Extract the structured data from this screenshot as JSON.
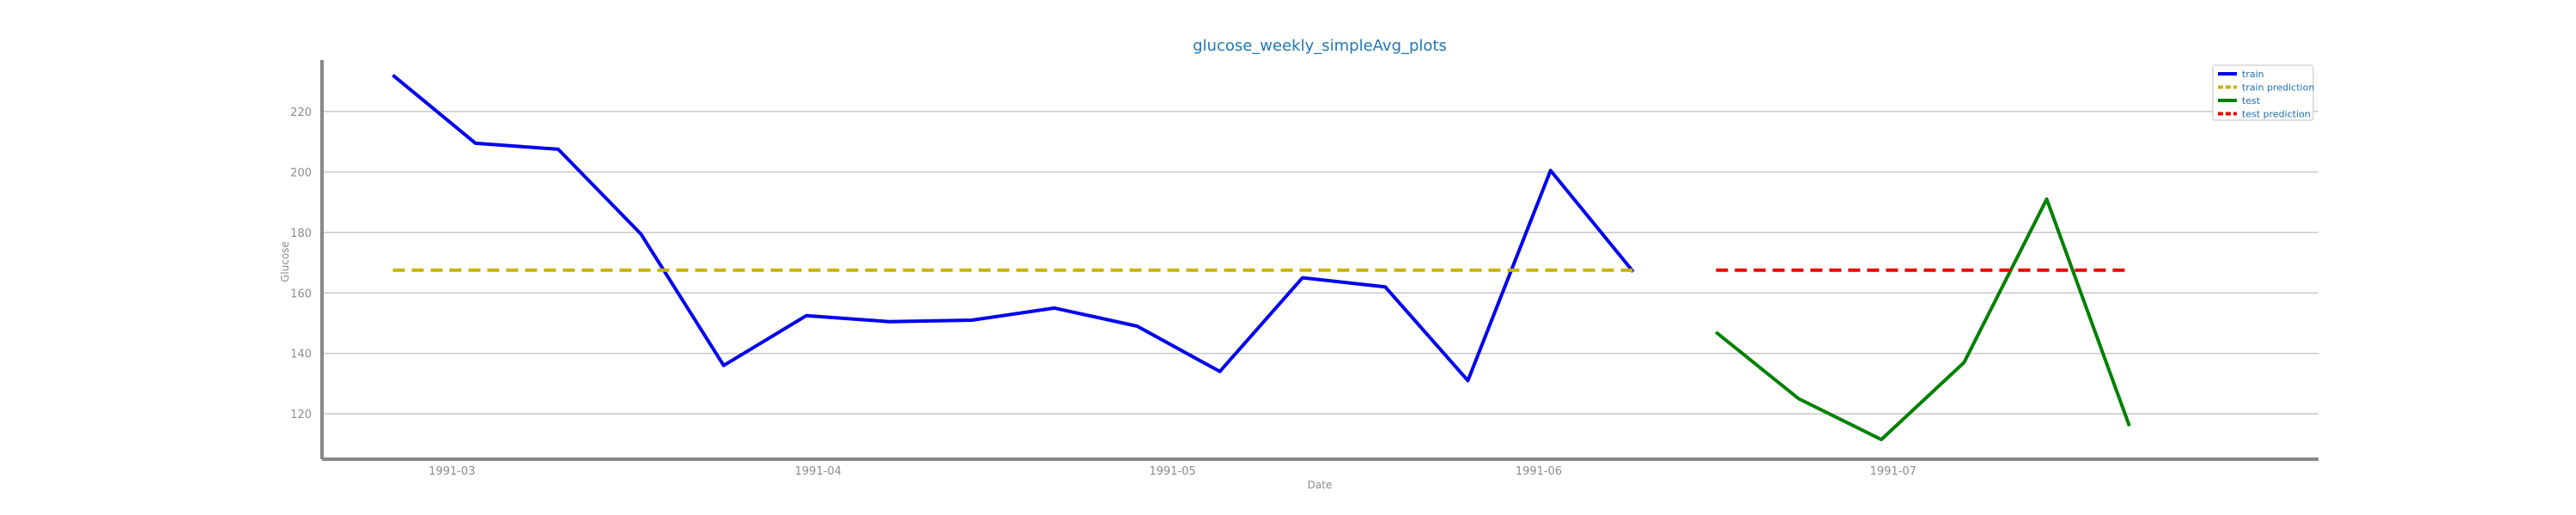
{
  "chart_data": {
    "type": "line",
    "title": "glucose_weekly_simpleAvg_plots",
    "xlabel": "Date",
    "ylabel": "Glucose",
    "x_type": "date",
    "xlim": [
      "1991-02-18",
      "1991-08-06"
    ],
    "ylim": [
      105,
      237
    ],
    "x_ticks": [
      "1991-03-01",
      "1991-04-01",
      "1991-05-01",
      "1991-06-01",
      "1991-07-01"
    ],
    "x_tick_labels": [
      "1991-03",
      "1991-04",
      "1991-05",
      "1991-06",
      "1991-07"
    ],
    "y_ticks": [
      120,
      140,
      160,
      180,
      200,
      220
    ],
    "y_tick_labels": [
      "120",
      "140",
      "160",
      "180",
      "200",
      "220"
    ],
    "grid": "horizontal",
    "legend_position": "top-right",
    "series": [
      {
        "name": "train",
        "color": "#0000ee",
        "style": "solid",
        "x": [
          "1991-02-24",
          "1991-03-03",
          "1991-03-10",
          "1991-03-17",
          "1991-03-24",
          "1991-03-31",
          "1991-04-07",
          "1991-04-14",
          "1991-04-21",
          "1991-04-28",
          "1991-05-05",
          "1991-05-12",
          "1991-05-19",
          "1991-05-26",
          "1991-06-02",
          "1991-06-09"
        ],
        "y": [
          232,
          209.5,
          207.5,
          179.5,
          136,
          152.5,
          150.5,
          151,
          155,
          149,
          134,
          165,
          162,
          131,
          200.5,
          167
        ]
      },
      {
        "name": "train prediction",
        "color": "#c8b400",
        "style": "dashed",
        "x": [
          "1991-02-24",
          "1991-06-09"
        ],
        "y": [
          167.5,
          167.5
        ]
      },
      {
        "name": "test",
        "color": "#008000",
        "style": "solid",
        "x": [
          "1991-06-16",
          "1991-06-23",
          "1991-06-30",
          "1991-07-07",
          "1991-07-14",
          "1991-07-21"
        ],
        "y": [
          147,
          125,
          111.5,
          137,
          191,
          116
        ]
      },
      {
        "name": "test prediction",
        "color": "#ee0000",
        "style": "dashed",
        "x": [
          "1991-06-16",
          "1991-07-21"
        ],
        "y": [
          167.5,
          167.5
        ]
      }
    ]
  }
}
